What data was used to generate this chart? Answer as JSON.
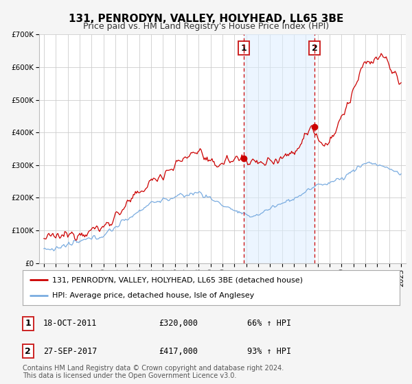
{
  "title": "131, PENRODYN, VALLEY, HOLYHEAD, LL65 3BE",
  "subtitle": "Price paid vs. HM Land Registry's House Price Index (HPI)",
  "ylim": [
    0,
    700000
  ],
  "yticks": [
    0,
    100000,
    200000,
    300000,
    400000,
    500000,
    600000,
    700000
  ],
  "ytick_labels": [
    "£0",
    "£100K",
    "£200K",
    "£300K",
    "£400K",
    "£500K",
    "£600K",
    "£700K"
  ],
  "red_line_color": "#cc0000",
  "blue_line_color": "#7aace0",
  "background_color": "#f5f5f5",
  "plot_bg_color": "#ffffff",
  "grid_color": "#cccccc",
  "marker1_date": 2011.8,
  "marker1_value": 320000,
  "marker2_date": 2017.75,
  "marker2_value": 417000,
  "marker1_date_str": "18-OCT-2011",
  "marker1_price": "£320,000",
  "marker1_hpi": "66% ↑ HPI",
  "marker2_date_str": "27-SEP-2017",
  "marker2_price": "£417,000",
  "marker2_hpi": "93% ↑ HPI",
  "shade_color": "#ddeeff",
  "shade_alpha": 0.55,
  "legend_red_label": "131, PENRODYN, VALLEY, HOLYHEAD, LL65 3BE (detached house)",
  "legend_blue_label": "HPI: Average price, detached house, Isle of Anglesey",
  "footer_text": "Contains HM Land Registry data © Crown copyright and database right 2024.\nThis data is licensed under the Open Government Licence v3.0.",
  "title_fontsize": 11,
  "subtitle_fontsize": 9,
  "tick_fontsize": 7.5,
  "legend_fontsize": 8,
  "annot_fontsize": 8.5,
  "footer_fontsize": 7
}
